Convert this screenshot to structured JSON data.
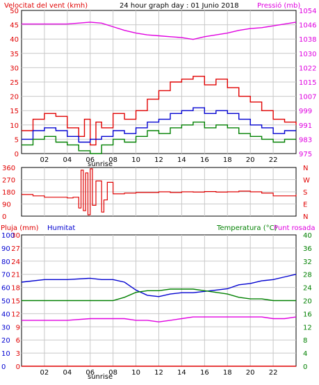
{
  "header": {
    "wind_title": "Velocitat del vent (kmh)",
    "center_title": "24 hour graph day : 01 Junio 2018",
    "pressure_title": "Pressió (mb)"
  },
  "colors": {
    "grid": "#c8c8c8",
    "wind_gust": "#e00000",
    "wind_avg": "#0000d0",
    "wind_min": "#008000",
    "pressure": "#e000e0",
    "direction": "#e00000",
    "rain": "#e00000",
    "humidity": "#0000d0",
    "temperature": "#008000",
    "dewpoint": "#e000e0"
  },
  "middle": {
    "dir_letters": [
      "N",
      "W",
      "S",
      "E",
      "N"
    ]
  },
  "bottom": {
    "rain_title": "Pluja (mm)",
    "humidity_title": "Humitat",
    "temp_title": "Temperatura (°C)",
    "dew_title": "Punt rosada"
  },
  "sunrise_label": "sunrise",
  "chart_data": [
    {
      "type": "line",
      "title": "Velocitat del vent (kmh) / Pressió (mb)",
      "x_ticks": [
        "02",
        "04",
        "06",
        "08",
        "10",
        "12",
        "14",
        "16",
        "18",
        "20",
        "22"
      ],
      "x_range": [
        0,
        24
      ],
      "y_ticks_left": [
        "0",
        "5",
        "10",
        "15",
        "20",
        "25",
        "30",
        "35",
        "40",
        "45",
        "50"
      ],
      "ylim_left": [
        0,
        50
      ],
      "y_ticks_right": [
        "975",
        "983",
        "991",
        "999",
        "1007",
        "1015",
        "1022",
        "1030",
        "1038",
        "1046",
        "1054"
      ],
      "ylim_right": [
        975,
        1054
      ],
      "grid": true,
      "series": [
        {
          "color": "#e00000",
          "axis": "left",
          "x": [
            0,
            1,
            2,
            3,
            4,
            5,
            5.5,
            6,
            6.5,
            7,
            8,
            9,
            10,
            11,
            12,
            13,
            14,
            15,
            16,
            17,
            18,
            19,
            20,
            21,
            22,
            23,
            24
          ],
          "values": [
            8,
            12,
            14,
            13,
            9,
            6,
            12,
            3,
            11,
            9,
            14,
            12,
            15,
            19,
            22,
            25,
            26,
            27,
            24,
            26,
            23,
            20,
            18,
            15,
            12,
            11,
            10
          ]
        },
        {
          "color": "#0000d0",
          "axis": "left",
          "x": [
            0,
            1,
            2,
            3,
            4,
            5,
            6,
            7,
            8,
            9,
            10,
            11,
            12,
            13,
            14,
            15,
            16,
            17,
            18,
            19,
            20,
            21,
            22,
            23,
            24
          ],
          "values": [
            5,
            8,
            9,
            8,
            6,
            4,
            5,
            6,
            8,
            7,
            9,
            11,
            12,
            14,
            15,
            16,
            14,
            15,
            14,
            12,
            10,
            9,
            7,
            8,
            8
          ]
        },
        {
          "color": "#008000",
          "axis": "left",
          "x": [
            0,
            1,
            2,
            3,
            4,
            5,
            6,
            7,
            8,
            9,
            10,
            11,
            12,
            13,
            14,
            15,
            16,
            17,
            18,
            19,
            20,
            21,
            22,
            23,
            24
          ],
          "values": [
            3,
            5,
            6,
            4,
            3,
            1,
            0,
            3,
            5,
            4,
            6,
            8,
            7,
            9,
            10,
            11,
            9,
            10,
            9,
            7,
            6,
            5,
            4,
            5,
            5
          ]
        },
        {
          "color": "#e000e0",
          "axis": "right",
          "x": [
            0,
            4,
            6,
            7,
            8,
            9,
            10,
            11,
            12,
            13,
            14,
            15,
            16,
            17,
            18,
            19,
            20,
            21,
            22,
            23,
            24
          ],
          "values": [
            1046.5,
            1046.5,
            1047.5,
            1047,
            1045,
            1043,
            1041.5,
            1040.5,
            1040,
            1039.5,
            1039,
            1038,
            1039.5,
            1040.5,
            1041.5,
            1043,
            1044,
            1044.5,
            1045.5,
            1046.5,
            1047.5
          ]
        }
      ]
    },
    {
      "type": "scatter",
      "title": "Direcció del vent",
      "x_range": [
        0,
        24
      ],
      "y_ticks": [
        "0",
        "90",
        "180",
        "270",
        "360"
      ],
      "ylim": [
        0,
        360
      ],
      "grid": true,
      "series": [
        {
          "color": "#e00000",
          "x": [
            0,
            1,
            2,
            3,
            4,
            4.5,
            5,
            5.2,
            5.4,
            5.6,
            5.8,
            6,
            6.2,
            6.5,
            7,
            7.2,
            7.5,
            8,
            9,
            10,
            11,
            12,
            13,
            14,
            15,
            16,
            17,
            18,
            19,
            20,
            21,
            22,
            23,
            24
          ],
          "values": [
            160,
            150,
            140,
            140,
            135,
            140,
            60,
            340,
            40,
            320,
            10,
            350,
            80,
            260,
            30,
            120,
            250,
            165,
            170,
            175,
            175,
            180,
            175,
            180,
            178,
            182,
            178,
            180,
            185,
            180,
            170,
            150,
            150,
            160
          ]
        }
      ]
    },
    {
      "type": "line",
      "title": "Pluja (mm) / Humitat / Temperatura (°C) / Punt rosada",
      "x_ticks": [
        "02",
        "04",
        "06",
        "08",
        "10",
        "12",
        "14",
        "16",
        "18",
        "20",
        "22"
      ],
      "x_range": [
        0,
        24
      ],
      "y_ticks_rain": [
        "0",
        "3",
        "6",
        "9",
        "12",
        "15",
        "18",
        "21",
        "24",
        "27",
        "30"
      ],
      "ylim_rain": [
        0,
        30
      ],
      "y_ticks_humidity": [
        "0",
        "10",
        "20",
        "30",
        "40",
        "50",
        "60",
        "70",
        "80",
        "90",
        "100"
      ],
      "ylim_humidity": [
        0,
        100
      ],
      "y_ticks_temp": [
        "0",
        "4",
        "8",
        "12",
        "16",
        "20",
        "24",
        "28",
        "32",
        "36",
        "40"
      ],
      "ylim_temp": [
        0,
        40
      ],
      "grid": true,
      "series": [
        {
          "name": "Pluja (mm)",
          "color": "#e00000",
          "axis": "rain",
          "x": [
            0,
            24
          ],
          "values": [
            0,
            0
          ]
        },
        {
          "name": "Humitat",
          "color": "#0000d0",
          "axis": "humidity",
          "x": [
            0,
            2,
            4,
            6,
            7,
            8,
            9,
            10,
            11,
            12,
            13,
            14,
            15,
            16,
            17,
            18,
            19,
            20,
            21,
            22,
            23,
            24
          ],
          "values": [
            64,
            66,
            66,
            67,
            66,
            66,
            64,
            58,
            54,
            53,
            55,
            56,
            56,
            57,
            58,
            59,
            62,
            63,
            65,
            66,
            68,
            70
          ]
        },
        {
          "name": "Temperatura (°C)",
          "color": "#008000",
          "axis": "temp",
          "x": [
            0,
            2,
            4,
            6,
            7,
            8,
            9,
            10,
            11,
            12,
            13,
            14,
            15,
            16,
            17,
            18,
            19,
            20,
            21,
            22,
            23,
            24
          ],
          "values": [
            20,
            20,
            20,
            20,
            20,
            20,
            21,
            22.5,
            23,
            23,
            23.5,
            23.5,
            23.5,
            23,
            22.5,
            22,
            21,
            20.5,
            20.5,
            20,
            20,
            20
          ]
        },
        {
          "name": "Punt rosada",
          "color": "#e000e0",
          "axis": "temp",
          "x": [
            0,
            2,
            4,
            6,
            7,
            8,
            9,
            10,
            11,
            12,
            13,
            14,
            15,
            16,
            17,
            18,
            19,
            20,
            21,
            22,
            23,
            24
          ],
          "values": [
            14,
            14,
            14,
            14.5,
            14.5,
            14.5,
            14.5,
            14,
            14,
            13.5,
            14,
            14.5,
            15,
            15,
            15,
            15,
            15,
            15,
            15,
            14.5,
            14.5,
            15
          ]
        }
      ]
    }
  ]
}
